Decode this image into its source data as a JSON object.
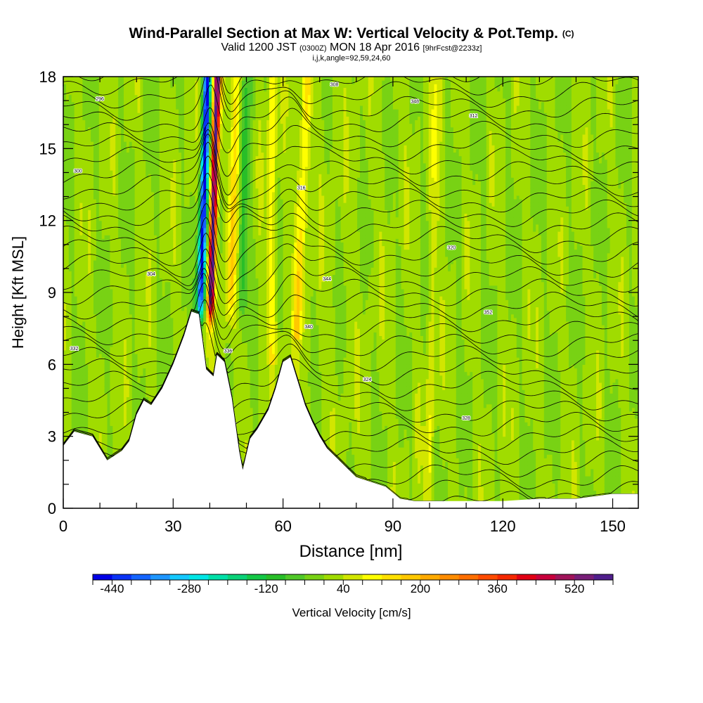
{
  "title": {
    "main": "Wind-Parallel Section at Max W: Vertical Velocity & Pot.Temp.",
    "tag": "(C)",
    "valid_a": "Valid 1200 JST",
    "valid_b": "(0300Z)",
    "valid_c": "MON 18 Apr 2016",
    "valid_d": "[9hrFcst@2233z]",
    "indices": "i,j,k,angle=92,59,24,60"
  },
  "chart_data": {
    "type": "heatmap",
    "xlabel": "Distance [nm]",
    "ylabel": "Height [Kft MSL]",
    "xlim": [
      0,
      157
    ],
    "ylim": [
      0,
      18
    ],
    "x_ticks": [
      0,
      30,
      60,
      90,
      120,
      150
    ],
    "y_ticks": [
      0,
      3,
      6,
      9,
      12,
      15,
      18
    ],
    "colorbar": {
      "label": "Vertical Velocity [cm/s]",
      "tick_labels": [
        -440,
        -280,
        -120,
        40,
        200,
        360,
        520
      ],
      "min": -480,
      "step": 40,
      "colors": [
        "#0000e6",
        "#0a32f5",
        "#1464ff",
        "#1e96ff",
        "#14c8ff",
        "#00e6e6",
        "#00e0a8",
        "#0ad278",
        "#14c846",
        "#28be28",
        "#50c828",
        "#78d214",
        "#a0dc00",
        "#d2e600",
        "#ffff00",
        "#ffe000",
        "#ffc800",
        "#ffaa00",
        "#ff8c00",
        "#ff6e00",
        "#ff4b00",
        "#f52800",
        "#e10014",
        "#c8003c",
        "#a0145a",
        "#781e78",
        "#501e8c"
      ]
    },
    "terrain_kft": [
      [
        0,
        2.6
      ],
      [
        3,
        3.2
      ],
      [
        8,
        3.0
      ],
      [
        12,
        2.0
      ],
      [
        16,
        2.4
      ],
      [
        18,
        2.8
      ],
      [
        20,
        3.9
      ],
      [
        22,
        4.5
      ],
      [
        24,
        4.3
      ],
      [
        27,
        5.0
      ],
      [
        30,
        6.0
      ],
      [
        33,
        7.2
      ],
      [
        35,
        8.2
      ],
      [
        37,
        8.1
      ],
      [
        38,
        7.0
      ],
      [
        39,
        5.8
      ],
      [
        41,
        5.5
      ],
      [
        42,
        6.4
      ],
      [
        44,
        6.1
      ],
      [
        46,
        4.6
      ],
      [
        48,
        2.4
      ],
      [
        49,
        1.6
      ],
      [
        51,
        2.9
      ],
      [
        53,
        3.3
      ],
      [
        56,
        4.1
      ],
      [
        58,
        5.0
      ],
      [
        60,
        6.1
      ],
      [
        62,
        6.3
      ],
      [
        64,
        5.3
      ],
      [
        66,
        4.3
      ],
      [
        68,
        3.6
      ],
      [
        70,
        3.0
      ],
      [
        72,
        2.5
      ],
      [
        76,
        1.9
      ],
      [
        80,
        1.3
      ],
      [
        84,
        1.1
      ],
      [
        88,
        0.9
      ],
      [
        92,
        0.4
      ],
      [
        96,
        0.3
      ],
      [
        100,
        0.3
      ],
      [
        110,
        0.3
      ],
      [
        120,
        0.3
      ],
      [
        130,
        0.4
      ],
      [
        140,
        0.4
      ],
      [
        150,
        0.6
      ],
      [
        157,
        0.6
      ]
    ],
    "plume_axis": [
      [
        7.5,
        39.5
      ],
      [
        18,
        41.5
      ]
    ],
    "theta_contour_labels": [
      "296",
      "300",
      "304",
      "308",
      "312",
      "316",
      "320",
      "324",
      "328",
      "332",
      "336",
      "340",
      "344",
      "348",
      "352"
    ]
  }
}
